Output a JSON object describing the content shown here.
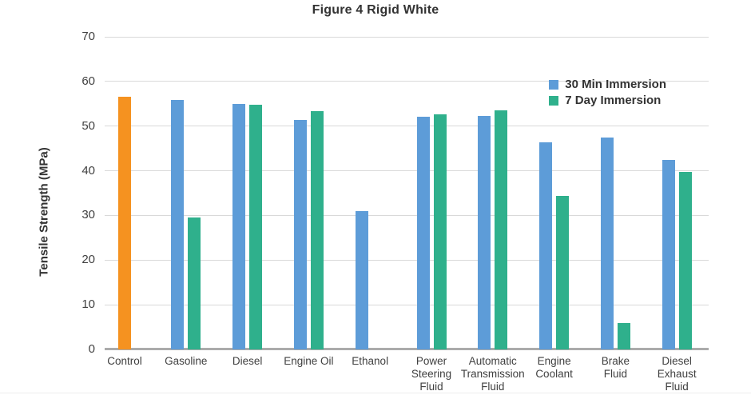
{
  "chart": {
    "title": "Figure 4 Rigid White",
    "ylabel": "Tensile Strength (MPa)"
  },
  "chart_data": {
    "type": "bar",
    "title": "Figure 4 Rigid White",
    "xlabel": "",
    "ylabel": "Tensile Strength (MPa)",
    "ylim": [
      0,
      70
    ],
    "ytick_step": 10,
    "grid": true,
    "legend_position": "top-right",
    "series": [
      {
        "name": "30 Min Immersion",
        "key": "v30",
        "color": "#5D9CD8"
      },
      {
        "name": "7 Day Immersion",
        "key": "v7",
        "color": "#2FB08C"
      }
    ],
    "control_color": "#F59220",
    "categories": [
      "Control",
      "Gasoline",
      "Diesel",
      "Engine Oil",
      "Ethanol",
      "Power Steering Fluid",
      "Automatic Transmission Fluid",
      "Engine Coolant",
      "Brake Fluid",
      "Diesel Exhaust Fluid"
    ],
    "points": [
      {
        "label": "Control",
        "label_lines": [
          "Control"
        ],
        "control": 56.5
      },
      {
        "label": "Gasoline",
        "label_lines": [
          "Gasoline"
        ],
        "v30": 55.8,
        "v7": 29.6
      },
      {
        "label": "Diesel",
        "label_lines": [
          "Diesel"
        ],
        "v30": 55.0,
        "v7": 54.7
      },
      {
        "label": "Engine Oil",
        "label_lines": [
          "Engine Oil"
        ],
        "v30": 51.3,
        "v7": 53.4
      },
      {
        "label": "Ethanol",
        "label_lines": [
          "Ethanol"
        ],
        "v30": 30.9,
        "v7": null
      },
      {
        "label": "Power Steering Fluid",
        "label_lines": [
          "Power",
          "Steering",
          "Fluid"
        ],
        "v30": 52.1,
        "v7": 52.7
      },
      {
        "label": "Automatic Transmission Fluid",
        "label_lines": [
          "Automatic",
          "Transmission",
          "Fluid"
        ],
        "v30": 52.3,
        "v7": 53.6
      },
      {
        "label": "Engine Coolant",
        "label_lines": [
          "Engine",
          "Coolant"
        ],
        "v30": 46.3,
        "v7": 34.3
      },
      {
        "label": "Brake Fluid",
        "label_lines": [
          "Brake",
          "Fluid"
        ],
        "v30": 47.4,
        "v7": 5.9
      },
      {
        "label": "Diesel Exhaust Fluid",
        "label_lines": [
          "Diesel",
          "Exhaust",
          "Fluid"
        ],
        "v30": 42.5,
        "v7": 39.8
      }
    ]
  },
  "colors": {
    "control_bar": "#F59220",
    "series_30min": "#5D9CD8",
    "series_7day": "#2FB08C",
    "gridline": "#d9d9d9",
    "axis_line": "#ababab",
    "text": "#333333"
  }
}
